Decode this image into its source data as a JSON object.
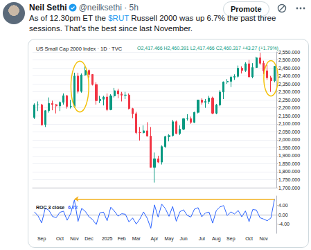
{
  "post": {
    "name": "Neil Sethi",
    "meta": "@neilksethi · 5h",
    "button": "Promote",
    "text": "As of 12.30pm ET the $RUT Russell 2000 was up 6.7% the past three sessions. That's the best since last November.",
    "cashtag": "$RUT"
  },
  "chart_data": [
    {
      "type": "candlestick",
      "title": "US Small Cap 2000 Index · 1D · TVC",
      "subtitle": "O2,417.466 H2,460.391 L2,417.466 C2,460.317 +43.27 (+1.79%)",
      "categories": [
        null,
        null,
        "Sep",
        null,
        null,
        null,
        null,
        "Oct",
        null,
        null,
        null,
        "Nov",
        null,
        null,
        null,
        "Dec",
        null,
        null,
        null,
        null,
        "2025",
        null,
        null,
        null,
        "Feb",
        null,
        null,
        null,
        "Mar",
        null,
        null,
        null,
        null,
        "Apr",
        null,
        null,
        null,
        "May",
        null,
        null,
        null,
        "Jun",
        null,
        null,
        null,
        null,
        "Jul",
        null,
        null,
        null,
        "Aug",
        null,
        null,
        null,
        "Sep",
        null,
        null,
        null,
        null,
        "Oct",
        null,
        null,
        null,
        "Nov",
        null,
        null,
        null
      ],
      "open": [
        2140,
        2218,
        2218,
        2095,
        2182,
        2228,
        2220,
        2212,
        2234,
        2276,
        2208,
        2209,
        2399,
        2303,
        2406,
        2434,
        2409,
        2346,
        2245,
        2254,
        2268,
        2189,
        2275,
        2307,
        2287,
        2279,
        2280,
        2195,
        2163,
        2045,
        2044,
        2056,
        2023,
        1827,
        1881,
        1860,
        1957,
        2020,
        2026,
        2113,
        2039,
        2066,
        2132,
        2132,
        2109,
        2172,
        2249,
        2234,
        2240,
        2261,
        2166,
        2218,
        2299,
        2362,
        2366,
        2392,
        2397,
        2448,
        2434,
        2476,
        2394,
        2452,
        2513,
        2479,
        2432,
        2388,
        2369
      ],
      "high": [
        2228,
        2240,
        2225,
        2185,
        2265,
        2245,
        2225,
        2240,
        2290,
        2280,
        2250,
        2420,
        2420,
        2415,
        2466,
        2440,
        2410,
        2360,
        2275,
        2275,
        2290,
        2285,
        2325,
        2320,
        2300,
        2300,
        2290,
        2200,
        2175,
        2080,
        2090,
        2110,
        2080,
        1920,
        1900,
        1965,
        2025,
        2035,
        2125,
        2120,
        2090,
        2135,
        2160,
        2145,
        2175,
        2250,
        2260,
        2255,
        2275,
        2270,
        2225,
        2310,
        2365,
        2380,
        2400,
        2410,
        2465,
        2460,
        2485,
        2500,
        2480,
        2520,
        2545,
        2495,
        2470,
        2400,
        2462
      ],
      "low": [
        2130,
        2180,
        2090,
        2080,
        2170,
        2185,
        2165,
        2180,
        2220,
        2195,
        2196,
        2200,
        2290,
        2295,
        2400,
        2390,
        2340,
        2220,
        2230,
        2215,
        2180,
        2185,
        2265,
        2260,
        2240,
        2255,
        2190,
        2135,
        2035,
        1995,
        2040,
        2020,
        1825,
        1732,
        1855,
        1845,
        1950,
        1990,
        2020,
        2035,
        2030,
        2060,
        2120,
        2100,
        2105,
        2165,
        2220,
        2200,
        2225,
        2160,
        2160,
        2210,
        2255,
        2350,
        2330,
        2375,
        2390,
        2415,
        2425,
        2390,
        2385,
        2450,
        2470,
        2410,
        2375,
        2300,
        2360
      ],
      "close": [
        2218,
        2218,
        2092,
        2182,
        2228,
        2220,
        2212,
        2234,
        2276,
        2208,
        2209,
        2399,
        2303,
        2406,
        2434,
        2409,
        2346,
        2245,
        2254,
        2268,
        2189,
        2275,
        2307,
        2287,
        2279,
        2280,
        2195,
        2163,
        2045,
        2044,
        2056,
        2023,
        1827,
        1881,
        1860,
        1957,
        2020,
        2026,
        2113,
        2039,
        2066,
        2132,
        2132,
        2109,
        2172,
        2249,
        2234,
        2240,
        2261,
        2166,
        2218,
        2299,
        2362,
        2366,
        2392,
        2397,
        2448,
        2434,
        2476,
        2394,
        2452,
        2513,
        2479,
        2432,
        2388,
        2369,
        2460
      ],
      "ylim": [
        1700,
        2550
      ],
      "yticks": [
        {
          "value": 1700,
          "label": "1,700.000"
        },
        {
          "value": 1750,
          "label": "1,750.000"
        },
        {
          "value": 1800,
          "label": "1,800.000"
        },
        {
          "value": 1850,
          "label": "1,850.000"
        },
        {
          "value": 1900,
          "label": "1,900.000"
        },
        {
          "value": 1950,
          "label": "1,950.000"
        },
        {
          "value": 2000,
          "label": "2,000.000"
        },
        {
          "value": 2050,
          "label": "2,050.000"
        },
        {
          "value": 2100,
          "label": "2,100.000"
        },
        {
          "value": 2150,
          "label": "2,150.000"
        },
        {
          "value": 2200,
          "label": "2,200.000"
        },
        {
          "value": 2250,
          "label": "2,250.000"
        },
        {
          "value": 2300,
          "label": "2,300.000"
        },
        {
          "value": 2350,
          "label": "2,350.000"
        },
        {
          "value": 2400,
          "label": "2,400.000"
        },
        {
          "value": 2450,
          "label": "2,450.000"
        },
        {
          "value": 2500,
          "label": "2,500.000"
        },
        {
          "value": 2550,
          "label": "2,550.000"
        }
      ],
      "grid": true,
      "tick_labels": "y"
    },
    {
      "type": "line",
      "title": "ROC 3 close",
      "categories": [
        null,
        null,
        "Sep",
        null,
        null,
        null,
        null,
        "Oct",
        null,
        null,
        null,
        "Nov",
        null,
        null,
        null,
        "Dec",
        null,
        null,
        null,
        null,
        "2025",
        null,
        null,
        null,
        "Feb",
        null,
        null,
        null,
        "Mar",
        null,
        null,
        null,
        null,
        "Apr",
        null,
        null,
        null,
        "May",
        null,
        null,
        null,
        "Jun",
        null,
        null,
        null,
        null,
        "Jul",
        null,
        null,
        null,
        "Aug",
        null,
        null,
        null,
        "Sep",
        null,
        null,
        null,
        null,
        "Oct",
        null,
        null,
        null,
        "Nov",
        null,
        null,
        null
      ],
      "values": [
        1.2,
        -0.5,
        -3.5,
        2.8,
        1.9,
        -0.8,
        -1.2,
        1.0,
        1.5,
        -2.4,
        0.6,
        6.3,
        -2.9,
        2.7,
        1.4,
        -0.9,
        -2.1,
        -4.2,
        0.8,
        1.1,
        -2.6,
        3.2,
        1.5,
        -0.6,
        0.4,
        0.2,
        -3.1,
        -1.4,
        -4.0,
        -1.8,
        1.2,
        -1.5,
        -5.8,
        4.2,
        -1.0,
        4.5,
        2.6,
        -0.7,
        3.5,
        -2.8,
        1.3,
        2.1,
        -0.3,
        -1.0,
        2.4,
        3.0,
        -0.9,
        0.7,
        1.1,
        -3.6,
        1.8,
        3.3,
        3.9,
        -0.4,
        1.2,
        0.3,
        1.8,
        -0.9,
        1.6,
        -3.0,
        2.2,
        2.0,
        -1.3,
        -1.9,
        -2.6,
        -1.4,
        6.72
      ],
      "color": "#2962ff",
      "ylim": [
        -8,
        8
      ],
      "yticks": [
        {
          "value": -4,
          "label": "-4.00"
        },
        {
          "value": 0,
          "label": "0.00"
        },
        {
          "value": 4,
          "label": "4.00"
        }
      ],
      "grid": false
    }
  ]
}
